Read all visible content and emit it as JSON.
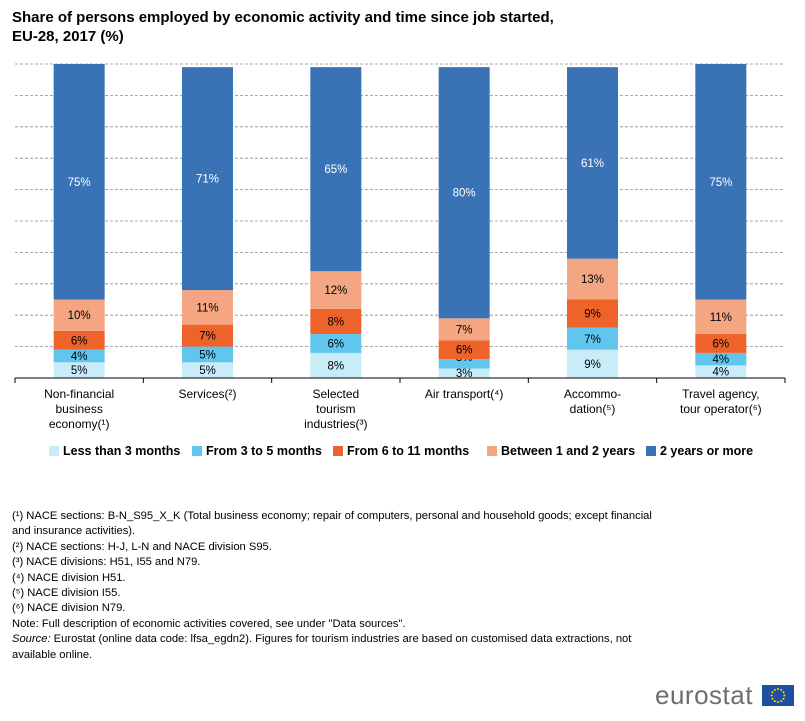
{
  "title_line1": "Share of persons employed by economic activity and time since job started,",
  "title_line2": "EU-28, 2017 (%)",
  "colors": {
    "less_3m": "#c9ecf9",
    "from_3_5m": "#61c6ee",
    "from_6_11m": "#ee6329",
    "between_1_2y": "#f4a582",
    "2y_more": "#3a72b6",
    "gridline": "#8c8c8c",
    "dark_label": "#ffffff"
  },
  "chart_data": {
    "type": "bar",
    "stacked": true,
    "ylim": [
      0,
      100
    ],
    "grid": true,
    "legend_position": "bottom",
    "categories": [
      [
        "Non-financial",
        "business",
        "economy(¹)"
      ],
      [
        "Services(²)"
      ],
      [
        "Selected",
        "tourism",
        "industries(³)"
      ],
      [
        "Air transport(⁴)"
      ],
      [
        "Accommo-",
        "dation(⁵)"
      ],
      [
        "Travel  agency,",
        "tour operator(⁶)"
      ]
    ],
    "series": [
      {
        "name": "Less than 3 months",
        "color_key": "less_3m",
        "values": [
          5,
          5,
          8,
          3,
          9,
          4
        ],
        "labels": [
          "5%",
          "5%",
          "8%",
          "3%",
          "9%",
          "4%"
        ]
      },
      {
        "name": "From 3 to 5 months",
        "color_key": "from_3_5m",
        "values": [
          4,
          5,
          6,
          3,
          7,
          4
        ],
        "labels": [
          "4%",
          "5%",
          "6%",
          "3%",
          "7%",
          "4%"
        ]
      },
      {
        "name": "From 6 to 11 months",
        "color_key": "from_6_11m",
        "values": [
          6,
          7,
          8,
          6,
          9,
          6
        ],
        "labels": [
          "6%",
          "7%",
          "8%",
          "6%",
          "9%",
          "6%"
        ]
      },
      {
        "name": "Between 1 and 2 years",
        "color_key": "between_1_2y",
        "values": [
          10,
          11,
          12,
          7,
          13,
          11
        ],
        "labels": [
          "10%",
          "11%",
          "12%",
          "7%",
          "13%",
          "11%"
        ]
      },
      {
        "name": "2 years or more",
        "color_key": "2y_more",
        "values": [
          75,
          71,
          65,
          80,
          61,
          75
        ],
        "labels": [
          "75%",
          "71%",
          "65%",
          "80%",
          "61%",
          "75%"
        ]
      }
    ]
  },
  "notes": [
    "(¹) NACE sections: B-N_S95_X_K (Total business economy; repair of computers, personal and household goods; except financial and insurance activities).",
    "(²) NACE sections: H-J, L-N and NACE division S95.",
    "(³) NACE divisions: H51, I55 and N79.",
    "(⁴) NACE division H51.",
    "(⁵) NACE division I55.",
    "(⁶) NACE division N79.",
    "Note: Full description of economic activities covered, see under \"Data sources\"."
  ],
  "source_label": "Source:",
  "source_text": " Eurostat (online data code: lfsa_egdn2). Figures for tourism industries are based on customised data extractions, not available online.",
  "logo_text": "eurostat"
}
